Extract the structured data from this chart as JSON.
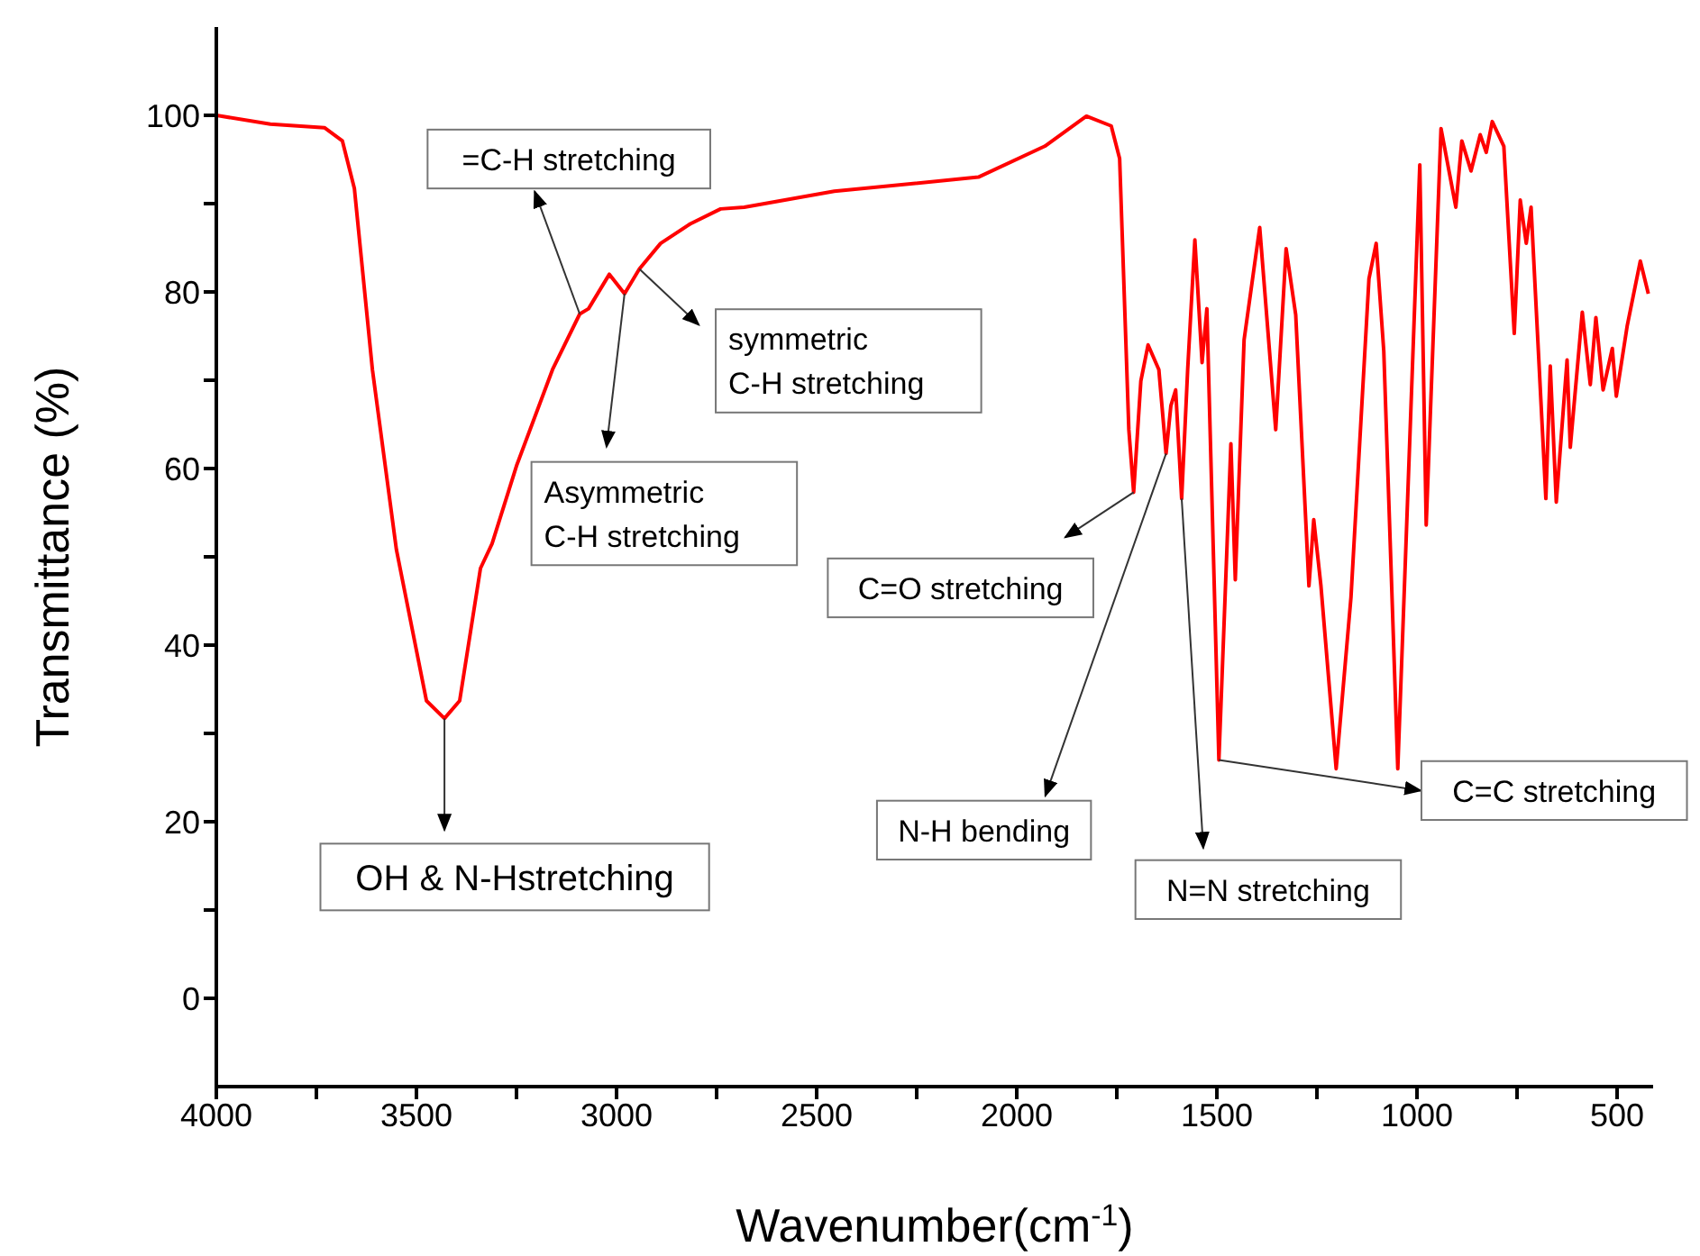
{
  "chart_data": {
    "type": "line",
    "xlabel": "Wavenumber(cm$^{-1}$)",
    "ylabel": "Transmittance (%)",
    "xlim": [
      4000,
      410
    ],
    "ylim": [
      -10,
      110
    ],
    "xticks": [
      4000,
      {
        "value": 3750,
        "label": null
      },
      3500,
      {
        "value": 3250,
        "label": null
      },
      3000,
      {
        "value": 2750,
        "label": null
      },
      2500,
      {
        "value": 2250,
        "label": null
      },
      2000,
      {
        "value": 1750,
        "label": null
      },
      1500,
      {
        "value": 1250,
        "label": null
      },
      1000,
      {
        "value": 750,
        "label": null
      },
      500
    ],
    "yticks": [
      0,
      {
        "value": 10,
        "label": null
      },
      20,
      {
        "value": 30,
        "label": null
      },
      40,
      {
        "value": 50,
        "label": null
      },
      60,
      {
        "value": 70,
        "label": null
      },
      80,
      {
        "value": 90,
        "label": null
      },
      100
    ],
    "grid": false,
    "legend": false,
    "marker": "none",
    "line_style": "solid",
    "series": [
      {
        "color": "#ff0000",
        "x": [
          4000,
          3865,
          3730,
          3685,
          3655,
          3610,
          3550,
          3475,
          3430,
          3392,
          3340,
          3311,
          3250,
          3160,
          3092,
          3070,
          3018,
          2980,
          2943,
          2890,
          2816,
          2740,
          2681,
          2456,
          2096,
          1930,
          1826,
          1764,
          1743,
          1720,
          1708,
          1690,
          1672,
          1645,
          1627,
          1615,
          1603,
          1588,
          1573,
          1555,
          1537,
          1525,
          1495,
          1465,
          1454,
          1432,
          1393,
          1353,
          1327,
          1303,
          1270,
          1258,
          1240,
          1202,
          1165,
          1120,
          1102,
          1083,
          1048,
          993,
          977,
          940,
          903,
          888,
          865,
          842,
          827,
          812,
          783,
          757,
          742,
          727,
          715,
          678,
          667,
          652,
          625,
          617,
          587,
          567,
          553,
          535,
          512,
          502,
          475,
          442,
          422
        ],
        "values": [
          100,
          99,
          98.6,
          97.1,
          91.7,
          71.2,
          50.8,
          33.7,
          31.7,
          33.7,
          48.7,
          51.5,
          60.3,
          71.2,
          77.5,
          78.1,
          82,
          79.8,
          82.6,
          85.5,
          87.7,
          89.4,
          89.6,
          91.4,
          93,
          96.5,
          99.9,
          98.8,
          95.1,
          64.4,
          57.3,
          69.9,
          74,
          71.2,
          61.7,
          67.1,
          68.9,
          56.6,
          71.2,
          85.9,
          72,
          78.1,
          27,
          62.8,
          47.4,
          74.6,
          87.3,
          64.4,
          84.9,
          77.4,
          46.7,
          54.2,
          46.7,
          26,
          45.4,
          81.5,
          85.5,
          73.3,
          26,
          94.4,
          53.6,
          98.5,
          89.6,
          97.1,
          93.7,
          97.8,
          95.8,
          99.3,
          96.5,
          75.3,
          90.4,
          85.5,
          89.6,
          56.6,
          71.6,
          56.2,
          72.3,
          62.4,
          77.7,
          69.5,
          77.1,
          68.9,
          73.6,
          68.2,
          76.1,
          83.5,
          79.8
        ]
      }
    ],
    "annotations": [
      {
        "text": "OH & N-Hstretching",
        "x": 3430,
        "y": 31.7
      },
      {
        "text": "=C-H stretching",
        "x": 3092,
        "y": 77.5
      },
      {
        "text": "Asymmetric\nC-H stretching",
        "x": 2980,
        "y": 79.8
      },
      {
        "text": "symmetric\nC-H stretching",
        "x": 2943,
        "y": 82.6
      },
      {
        "text": "C=O stretching",
        "x": 1708,
        "y": 57.3
      },
      {
        "text": "N-H bending",
        "x": 1627,
        "y": 61.7
      },
      {
        "text": "N=N stretching",
        "x": 1588,
        "y": 56.6
      },
      {
        "text": "C=C stretching",
        "x": 1495,
        "y": 27
      }
    ]
  }
}
